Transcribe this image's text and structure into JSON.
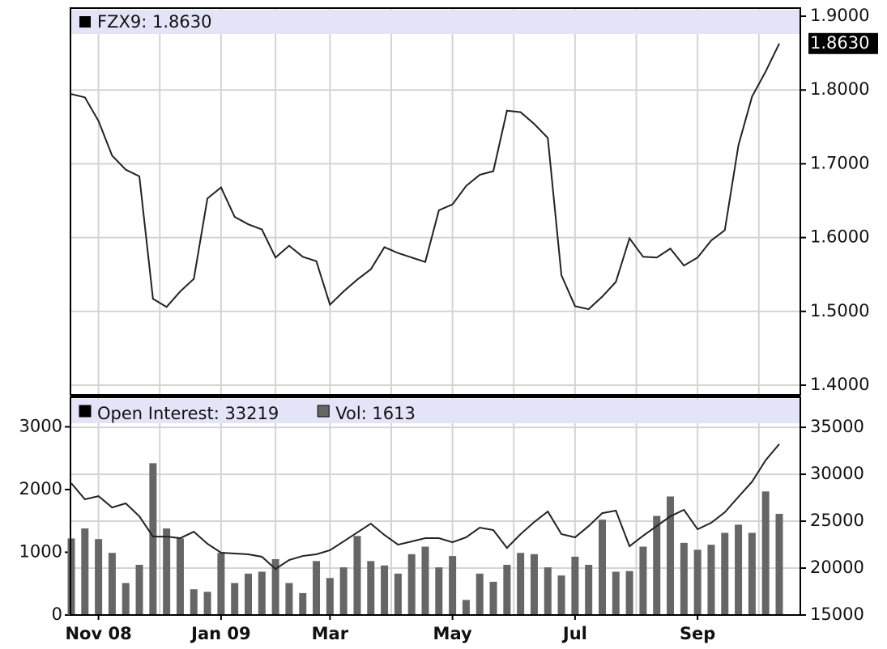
{
  "chart_data": [
    {
      "type": "line",
      "title": "FZX9: 1.8630",
      "color": "#222222",
      "values": [
        1.7945,
        1.79,
        1.758,
        1.711,
        1.692,
        1.683,
        1.517,
        1.506,
        1.527,
        1.544,
        1.653,
        1.668,
        1.628,
        1.618,
        1.611,
        1.573,
        1.589,
        1.574,
        1.568,
        1.509,
        1.527,
        1.543,
        1.557,
        1.587,
        1.579,
        1.573,
        1.567,
        1.637,
        1.645,
        1.67,
        1.685,
        1.69,
        1.772,
        1.77,
        1.754,
        1.735,
        1.549,
        1.507,
        1.503,
        1.52,
        1.54,
        1.599,
        1.574,
        1.573,
        1.585,
        1.562,
        1.573,
        1.596,
        1.61,
        1.725,
        1.791,
        1.825,
        1.863
      ],
      "value_labels": [
        null,
        null,
        null,
        null,
        null,
        null,
        null,
        null,
        null,
        null,
        null,
        null,
        null,
        null,
        null,
        null,
        null,
        null,
        null,
        null,
        null,
        null,
        null,
        null,
        null,
        null,
        null,
        null,
        null,
        null,
        null,
        null,
        null,
        null,
        null,
        null,
        null,
        null,
        null,
        null,
        null,
        null,
        null,
        null,
        null,
        null,
        null,
        null,
        null,
        null,
        null,
        null,
        "1.8630"
      ],
      "ylim": [
        1.3868,
        1.911
      ],
      "yticks": [
        {
          "value": 1.4,
          "label": "1.4000"
        },
        {
          "value": 1.5,
          "label": "1.5000"
        },
        {
          "value": 1.6,
          "label": "1.6000"
        },
        {
          "value": 1.7,
          "label": "1.7000"
        },
        {
          "value": 1.8,
          "label": "1.8000"
        },
        {
          "value": 1.9,
          "label": "1.9000"
        }
      ],
      "grid": true
    },
    {
      "type": "bar",
      "categories": [
        null,
        null,
        "Nov 08",
        null,
        null,
        null,
        null,
        null,
        null,
        null,
        null,
        "Jan 09",
        null,
        null,
        null,
        null,
        null,
        null,
        null,
        "Mar",
        null,
        null,
        null,
        null,
        null,
        null,
        null,
        null,
        "May",
        null,
        null,
        null,
        null,
        null,
        null,
        null,
        null,
        "Jul",
        null,
        null,
        null,
        null,
        null,
        null,
        null,
        null,
        "Sep",
        null,
        null,
        null,
        null,
        null,
        null
      ],
      "series": [
        {
          "name": "Open Interest: 33219",
          "color": "#222222",
          "axis": "y2",
          "values": [
            29050,
            27330,
            27670,
            26460,
            26900,
            25520,
            23360,
            23360,
            23190,
            23880,
            22590,
            21640,
            21550,
            21470,
            21210,
            19910,
            20860,
            21290,
            21470,
            21900,
            22840,
            23790,
            24740,
            23530,
            22500,
            22840,
            23190,
            23190,
            22760,
            23280,
            24310,
            24050,
            22150,
            23620,
            24910,
            26030,
            23620,
            23280,
            24480,
            25860,
            26120,
            22330,
            23450,
            24480,
            25520,
            26210,
            24140,
            24830,
            25950,
            27590,
            29200,
            31500,
            33219
          ]
        },
        {
          "name": "Vol: 1613",
          "color": "#666666",
          "values": [
            1220,
            1380,
            1210,
            990,
            510,
            800,
            2420,
            1380,
            1220,
            410,
            370,
            990,
            510,
            660,
            690,
            890,
            510,
            350,
            860,
            590,
            760,
            1260,
            860,
            790,
            660,
            970,
            1090,
            760,
            940,
            240,
            660,
            530,
            800,
            990,
            970,
            760,
            630,
            930,
            800,
            1520,
            690,
            700,
            1090,
            1580,
            1890,
            1150,
            1040,
            1120,
            1310,
            1440,
            1310,
            1970,
            1613
          ]
        }
      ],
      "ylim": [
        0,
        3470
      ],
      "yticks": [
        0,
        1000,
        2000,
        3000
      ],
      "y2lim": [
        15000,
        38200
      ],
      "y2ticks": [
        15000,
        20000,
        25000,
        30000,
        35000
      ],
      "grid": true
    }
  ]
}
